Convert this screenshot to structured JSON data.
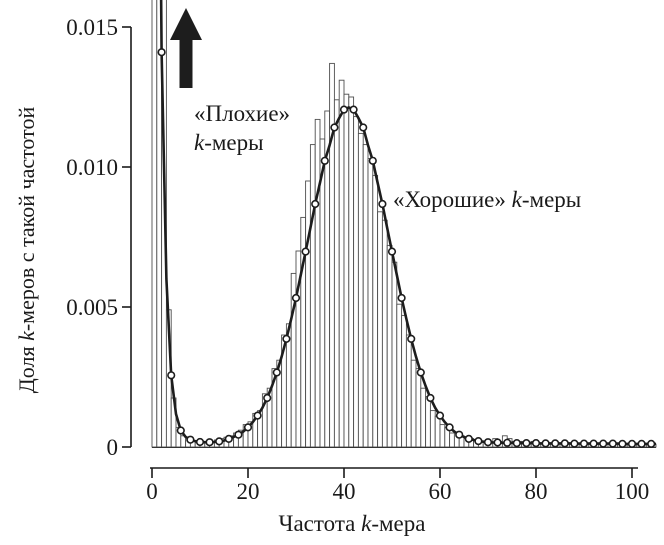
{
  "figure": {
    "background": "#ffffff",
    "ink_color": "#1a1a1a",
    "bar_fill": "#ffffff",
    "bar_stroke": "#4f4f4f",
    "curve_color": "#1d1d1d",
    "arrow_color": "#1d1d1d"
  },
  "chart_data": {
    "type": "bar",
    "subtype": "histogram-with-fit-curve",
    "title": "",
    "xlabel": "Частота k-мера",
    "ylabel": "Доля k-меров с такой частотой",
    "xlabel_parts": [
      {
        "t": "Частота ",
        "i": false
      },
      {
        "t": "k",
        "i": true
      },
      {
        "t": "-мера",
        "i": false
      }
    ],
    "ylabel_parts": [
      {
        "t": "Доля ",
        "i": false
      },
      {
        "t": "k",
        "i": true
      },
      {
        "t": "-меров с такой частотой",
        "i": false
      }
    ],
    "xlim": [
      0,
      105
    ],
    "ylim": [
      0,
      0.0158
    ],
    "grid": false,
    "legend": null,
    "xticks": {
      "values": [
        0,
        20,
        40,
        60,
        80,
        100
      ],
      "labels": [
        "0",
        "20",
        "40",
        "60",
        "80",
        "100"
      ]
    },
    "yticks": {
      "values": [
        0,
        0.005,
        0.01,
        0.015
      ],
      "labels": [
        "0",
        "0.005",
        "0.010",
        "0.015"
      ]
    },
    "bars": {
      "x_start": 1,
      "bin_width": 1,
      "note": "values above ylim are clipped at plot top",
      "values": [
        0.032,
        0.021,
        0.016,
        0.0049,
        0.00175,
        0.0007,
        0.0004,
        0.00025,
        0.0002,
        0.00015,
        0.0002,
        0.00015,
        0.0002,
        0.00025,
        0.0003,
        0.00035,
        0.0004,
        0.0005,
        0.0006,
        0.0008,
        0.0009,
        0.0012,
        0.0013,
        0.0019,
        0.0021,
        0.0028,
        0.0031,
        0.004,
        0.0044,
        0.0062,
        0.007,
        0.0082,
        0.0095,
        0.0108,
        0.0117,
        0.011,
        0.012,
        0.0137,
        0.0124,
        0.0131,
        0.0126,
        0.0125,
        0.0118,
        0.0112,
        0.0108,
        0.0103,
        0.0097,
        0.0084,
        0.0081,
        0.0072,
        0.0066,
        0.0051,
        0.0047,
        0.004,
        0.0031,
        0.0028,
        0.0021,
        0.0018,
        0.0013,
        0.0011,
        0.0008,
        0.0007,
        0.0005,
        0.0005,
        0.0004,
        0.0003,
        0.0003,
        0.00025,
        0.0002,
        0.0002,
        0.0002,
        0.0003,
        0.0002,
        0.0004,
        0.0003,
        0.0002,
        0.0002,
        0.0002,
        0.0001,
        0.0002,
        0.0001,
        0.00015,
        0.0001,
        0.00015,
        0.0001,
        0.0001,
        0.00015,
        0.0001,
        0.0001,
        0.0001,
        0.0001,
        0.00015,
        0.0001,
        0.0001,
        0.0001,
        0.0001,
        0.0001,
        0.0001,
        0.0001,
        0.0001,
        0.0001,
        0.0001,
        0.0001,
        0.0001,
        0.0001
      ]
    },
    "fit_curve": {
      "x_start": 1,
      "x_step": 1,
      "marker": "open-circle",
      "marker_step": 2,
      "values": [
        0.0336,
        0.0141,
        0.006,
        0.00256,
        0.00118,
        0.00059,
        0.00036,
        0.00026,
        0.00021,
        0.00018,
        0.00017,
        0.00017,
        0.00018,
        0.0002,
        0.00023,
        0.00029,
        0.00036,
        0.00044,
        0.00055,
        0.0007,
        0.00089,
        0.00112,
        0.0014,
        0.00175,
        0.00218,
        0.00266,
        0.00322,
        0.00386,
        0.00457,
        0.00532,
        0.00615,
        0.00698,
        0.00782,
        0.00868,
        0.00944,
        0.01022,
        0.01078,
        0.01141,
        0.01175,
        0.01205,
        0.01213,
        0.01205,
        0.01175,
        0.01141,
        0.01078,
        0.01022,
        0.00944,
        0.00868,
        0.00782,
        0.00698,
        0.00615,
        0.00532,
        0.00457,
        0.00386,
        0.00322,
        0.00266,
        0.00218,
        0.00175,
        0.0014,
        0.00112,
        0.00089,
        0.0007,
        0.00055,
        0.00044,
        0.00036,
        0.00029,
        0.00025,
        0.00021,
        0.00019,
        0.00017,
        0.00016,
        0.00016,
        0.00015,
        0.00015,
        0.00015,
        0.00014,
        0.00014,
        0.00014,
        0.00014,
        0.00014,
        0.00013,
        0.00013,
        0.00013,
        0.00013,
        0.00013,
        0.00013,
        0.00013,
        0.00012,
        0.00012,
        0.00012,
        0.00012,
        0.00012,
        0.00012,
        0.00012,
        0.00012,
        0.00012,
        0.00012,
        0.00011,
        0.00011,
        0.00011,
        0.00011,
        0.00011,
        0.00011,
        0.00011,
        0.00011
      ]
    },
    "annotations": {
      "bad_kmers": {
        "line1_parts": [
          {
            "t": "«Плохие»",
            "i": false
          }
        ],
        "line2_parts": [
          {
            "t": "k",
            "i": true
          },
          {
            "t": "-меры",
            "i": false
          }
        ]
      },
      "good_kmers": {
        "parts": [
          {
            "t": "«Хорошие» ",
            "i": false
          },
          {
            "t": "k",
            "i": true
          },
          {
            "t": "-меры",
            "i": false
          }
        ]
      },
      "arrow": {
        "glyph": "up-arrow"
      }
    }
  }
}
